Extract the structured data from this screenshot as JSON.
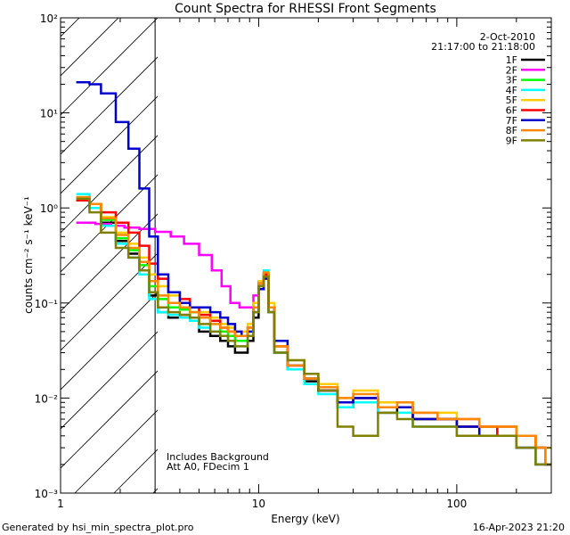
{
  "chart_data": {
    "type": "line",
    "title": "Count Spectra for RHESSI Front Segments",
    "xlabel": "Energy (keV)",
    "ylabel": "counts cm⁻² s⁻¹ keV⁻¹",
    "xscale": "log",
    "yscale": "log",
    "xlim": [
      1,
      300
    ],
    "ylim": [
      0.001,
      100
    ],
    "xticks": [
      {
        "value": 1,
        "label": "1"
      },
      {
        "value": 10,
        "label": "10"
      },
      {
        "value": 100,
        "label": "100"
      }
    ],
    "yticks": [
      {
        "value": 0.001,
        "label": "10⁻³"
      },
      {
        "value": 0.01,
        "label": "10⁻²"
      },
      {
        "value": 0.1,
        "label": "10⁻¹"
      },
      {
        "value": 1,
        "label": "10⁰"
      },
      {
        "value": 10,
        "label": "10¹"
      },
      {
        "value": 100,
        "label": "10²"
      }
    ],
    "shaded_region": {
      "from": 1,
      "to": 3,
      "pattern": "diagonal-hatch"
    },
    "date_line": "2-Oct-2010",
    "time_range": "21:17:00 to 21:18:00",
    "annotations": [
      "Includes Background",
      "Att A0, FDecim 1"
    ],
    "footer_left": "Generated by hsi_min_spectra_plot.pro",
    "footer_right": "16-Apr-2023 21:20",
    "series": [
      {
        "name": "1F",
        "color": "#000000",
        "x": [
          1.2,
          1.4,
          1.6,
          1.9,
          2.2,
          2.5,
          2.8,
          3.1,
          3.5,
          4.0,
          4.5,
          5.0,
          5.7,
          6.4,
          7.0,
          7.6,
          8.2,
          8.8,
          9.4,
          10.0,
          10.6,
          11.2,
          12,
          14,
          17,
          20,
          25,
          30,
          40,
          50,
          60,
          80,
          100,
          130,
          160,
          200,
          250,
          280
        ],
        "y": [
          1.2,
          1.0,
          0.7,
          0.45,
          0.33,
          0.22,
          0.12,
          0.08,
          0.07,
          0.075,
          0.07,
          0.05,
          0.045,
          0.04,
          0.035,
          0.03,
          0.03,
          0.04,
          0.07,
          0.14,
          0.2,
          0.08,
          0.03,
          0.02,
          0.015,
          0.012,
          0.008,
          0.01,
          0.007,
          0.008,
          0.006,
          0.006,
          0.005,
          0.004,
          0.005,
          0.003,
          0.002,
          0.002
        ]
      },
      {
        "name": "2F",
        "color": "#ff00ff",
        "x": [
          1.2,
          1.5,
          1.8,
          2.1,
          2.5,
          3.0,
          3.6,
          4.2,
          5.0,
          5.8,
          6.5,
          7.2,
          8.0,
          8.8,
          9.4,
          10.0,
          10.6,
          11.2,
          12,
          14,
          17,
          20,
          25,
          30,
          40,
          50,
          60,
          80,
          100,
          130,
          160,
          200,
          250,
          280
        ],
        "y": [
          0.7,
          0.68,
          0.65,
          0.62,
          0.6,
          0.56,
          0.5,
          0.42,
          0.32,
          0.22,
          0.15,
          0.1,
          0.09,
          0.09,
          0.12,
          0.17,
          0.2,
          0.08,
          0.035,
          0.022,
          0.016,
          0.012,
          0.009,
          0.01,
          0.008,
          0.008,
          0.007,
          0.006,
          0.006,
          0.005,
          0.005,
          0.004,
          0.003,
          0.002
        ]
      },
      {
        "name": "3F",
        "color": "#00ff00",
        "x": [
          1.2,
          1.4,
          1.6,
          1.9,
          2.2,
          2.5,
          2.8,
          3.1,
          3.5,
          4.0,
          4.5,
          5.0,
          5.7,
          6.4,
          7.0,
          7.6,
          8.2,
          8.8,
          9.4,
          10.0,
          10.6,
          11.2,
          12,
          14,
          17,
          20,
          25,
          30,
          40,
          50,
          60,
          80,
          100,
          130,
          160,
          200,
          250,
          280
        ],
        "y": [
          1.3,
          1.1,
          0.75,
          0.48,
          0.36,
          0.25,
          0.15,
          0.11,
          0.09,
          0.085,
          0.08,
          0.07,
          0.06,
          0.05,
          0.045,
          0.04,
          0.04,
          0.05,
          0.09,
          0.16,
          0.21,
          0.09,
          0.035,
          0.02,
          0.016,
          0.013,
          0.009,
          0.01,
          0.008,
          0.008,
          0.006,
          0.006,
          0.005,
          0.005,
          0.004,
          0.004,
          0.003,
          0.002
        ]
      },
      {
        "name": "4F",
        "color": "#00ffff",
        "x": [
          1.2,
          1.4,
          1.6,
          1.9,
          2.2,
          2.5,
          2.8,
          3.1,
          3.5,
          4.0,
          4.5,
          5.0,
          5.7,
          6.4,
          7.0,
          7.6,
          8.2,
          8.8,
          9.4,
          10.0,
          10.6,
          11.2,
          12,
          14,
          17,
          20,
          25,
          30,
          40,
          50,
          60,
          80,
          100,
          130,
          160,
          200,
          250,
          280
        ],
        "y": [
          1.4,
          1.0,
          0.65,
          0.42,
          0.3,
          0.2,
          0.11,
          0.08,
          0.075,
          0.07,
          0.065,
          0.055,
          0.05,
          0.045,
          0.04,
          0.035,
          0.035,
          0.045,
          0.08,
          0.15,
          0.22,
          0.08,
          0.03,
          0.02,
          0.014,
          0.011,
          0.008,
          0.009,
          0.007,
          0.007,
          0.005,
          0.005,
          0.004,
          0.004,
          0.004,
          0.003,
          0.002,
          0.002
        ]
      },
      {
        "name": "5F",
        "color": "#ffcc00",
        "x": [
          1.2,
          1.4,
          1.6,
          1.9,
          2.2,
          2.5,
          2.8,
          3.1,
          3.5,
          4.0,
          4.5,
          5.0,
          5.7,
          6.4,
          7.0,
          7.6,
          8.2,
          8.8,
          9.4,
          10.0,
          10.6,
          11.2,
          12,
          14,
          17,
          20,
          25,
          30,
          40,
          50,
          60,
          80,
          100,
          130,
          160,
          200,
          250,
          280
        ],
        "y": [
          1.25,
          1.1,
          0.8,
          0.55,
          0.42,
          0.3,
          0.2,
          0.15,
          0.12,
          0.1,
          0.09,
          0.08,
          0.07,
          0.06,
          0.055,
          0.05,
          0.05,
          0.06,
          0.1,
          0.17,
          0.2,
          0.1,
          0.04,
          0.025,
          0.018,
          0.014,
          0.01,
          0.012,
          0.009,
          0.009,
          0.007,
          0.007,
          0.006,
          0.005,
          0.005,
          0.004,
          0.003,
          0.003
        ]
      },
      {
        "name": "6F",
        "color": "#ff0000",
        "x": [
          1.2,
          1.4,
          1.6,
          1.9,
          2.2,
          2.5,
          2.8,
          3.1,
          3.5,
          4.0,
          4.5,
          5.0,
          5.7,
          6.4,
          7.0,
          7.6,
          8.2,
          8.8,
          9.4,
          10.0,
          10.6,
          11.2,
          12,
          14,
          17,
          20,
          25,
          30,
          40,
          50,
          60,
          80,
          100,
          130,
          160,
          200,
          250,
          280
        ],
        "y": [
          1.2,
          1.1,
          0.9,
          0.7,
          0.55,
          0.4,
          0.26,
          0.18,
          0.13,
          0.11,
          0.09,
          0.075,
          0.065,
          0.055,
          0.05,
          0.045,
          0.045,
          0.055,
          0.09,
          0.16,
          0.2,
          0.09,
          0.035,
          0.022,
          0.016,
          0.012,
          0.009,
          0.01,
          0.008,
          0.008,
          0.006,
          0.006,
          0.005,
          0.005,
          0.004,
          0.004,
          0.003,
          0.002
        ]
      },
      {
        "name": "7F",
        "color": "#0000cc",
        "x": [
          1.2,
          1.4,
          1.6,
          1.9,
          2.2,
          2.5,
          2.8,
          3.1,
          3.5,
          4.0,
          4.5,
          5.0,
          5.7,
          6.4,
          7.0,
          7.6,
          8.2,
          8.8,
          9.4,
          10.0,
          10.6,
          11.2,
          12,
          14,
          17,
          20,
          25,
          30,
          40,
          50,
          60,
          80,
          100,
          130,
          160,
          200,
          250,
          280
        ],
        "y": [
          21,
          20,
          16,
          8,
          4.2,
          1.6,
          0.5,
          0.2,
          0.13,
          0.1,
          0.09,
          0.09,
          0.08,
          0.07,
          0.06,
          0.05,
          0.045,
          0.05,
          0.08,
          0.14,
          0.18,
          0.09,
          0.04,
          0.022,
          0.016,
          0.012,
          0.009,
          0.01,
          0.008,
          0.008,
          0.006,
          0.006,
          0.005,
          0.004,
          0.004,
          0.003,
          0.003,
          0.002
        ]
      },
      {
        "name": "8F",
        "color": "#ff8800",
        "x": [
          1.2,
          1.4,
          1.6,
          1.9,
          2.2,
          2.5,
          2.8,
          3.1,
          3.5,
          4.0,
          4.5,
          5.0,
          5.7,
          6.4,
          7.0,
          7.6,
          8.2,
          8.8,
          9.4,
          10.0,
          10.6,
          11.2,
          12,
          14,
          17,
          20,
          25,
          30,
          40,
          50,
          60,
          80,
          100,
          130,
          160,
          200,
          250,
          280
        ],
        "y": [
          1.3,
          1.1,
          0.78,
          0.52,
          0.38,
          0.27,
          0.17,
          0.12,
          0.1,
          0.09,
          0.08,
          0.07,
          0.06,
          0.055,
          0.05,
          0.045,
          0.045,
          0.055,
          0.09,
          0.16,
          0.21,
          0.09,
          0.035,
          0.022,
          0.016,
          0.013,
          0.01,
          0.011,
          0.008,
          0.009,
          0.007,
          0.006,
          0.006,
          0.005,
          0.005,
          0.004,
          0.003,
          0.002
        ]
      },
      {
        "name": "9F",
        "color": "#808000",
        "x": [
          1.2,
          1.4,
          1.6,
          1.9,
          2.2,
          2.5,
          2.8,
          3.1,
          3.5,
          4.0,
          4.5,
          5.0,
          5.7,
          6.4,
          7.0,
          7.6,
          8.2,
          8.8,
          9.4,
          10.0,
          10.6,
          11.2,
          12,
          14,
          17,
          20,
          25,
          30,
          40,
          50,
          60,
          80,
          100,
          130,
          160,
          200,
          250,
          280
        ],
        "y": [
          1.25,
          0.9,
          0.55,
          0.38,
          0.3,
          0.22,
          0.13,
          0.09,
          0.08,
          0.075,
          0.07,
          0.06,
          0.05,
          0.045,
          0.04,
          0.035,
          0.035,
          0.045,
          0.08,
          0.15,
          0.19,
          0.08,
          0.03,
          0.025,
          0.018,
          0.012,
          0.005,
          0.004,
          0.007,
          0.006,
          0.005,
          0.005,
          0.004,
          0.004,
          0.004,
          0.003,
          0.002,
          0.002
        ]
      }
    ]
  }
}
